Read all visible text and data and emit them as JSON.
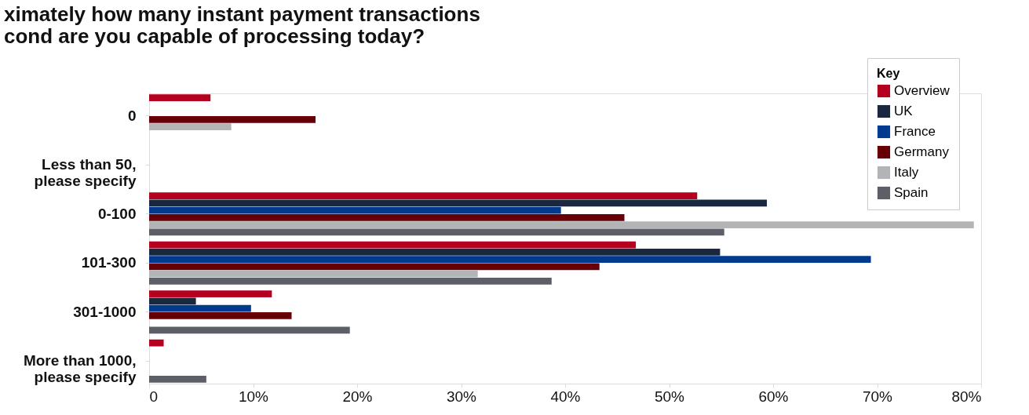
{
  "chart_data": {
    "type": "bar",
    "orientation": "horizontal",
    "title": "ximately how many instant payment transactions\ncond are you capable of processing today?",
    "legend_title": "Key",
    "legend": "top right",
    "grid": false,
    "categories": [
      "0",
      "Less than 50, please specify",
      "0-100",
      "101-300",
      "301-1000",
      "More than 1000, please specify"
    ],
    "xlim": [
      0,
      80
    ],
    "xticks": [
      0,
      {
        "value": 10,
        "label": "10%"
      },
      {
        "value": 20,
        "label": "20%"
      },
      {
        "value": 30,
        "label": "30%"
      },
      {
        "value": 40,
        "label": "40%"
      },
      {
        "value": 50,
        "label": "50%"
      },
      {
        "value": 60,
        "label": "60%"
      },
      {
        "value": 70,
        "label": "70%"
      },
      {
        "value": 80,
        "label": "80%"
      }
    ],
    "series": [
      {
        "name": "Overview",
        "color": "#b5001f",
        "values": [
          5.9,
          null,
          52.7,
          46.8,
          11.8,
          1.4
        ]
      },
      {
        "name": "UK",
        "color": "#19283f",
        "values": [
          null,
          null,
          59.4,
          54.9,
          4.5,
          null
        ]
      },
      {
        "name": "France",
        "color": "#003a8f",
        "values": [
          null,
          null,
          39.6,
          69.4,
          9.8,
          null
        ]
      },
      {
        "name": "Germany",
        "color": "#660006",
        "values": [
          16.0,
          null,
          45.7,
          43.3,
          13.7,
          null
        ]
      },
      {
        "name": "Italy",
        "color": "#b2b4b5",
        "values": [
          7.9,
          null,
          79.3,
          31.6,
          null,
          null
        ]
      },
      {
        "name": "Spain",
        "color": "#5c5f67",
        "values": [
          null,
          null,
          55.3,
          38.7,
          19.3,
          5.5
        ]
      }
    ]
  }
}
